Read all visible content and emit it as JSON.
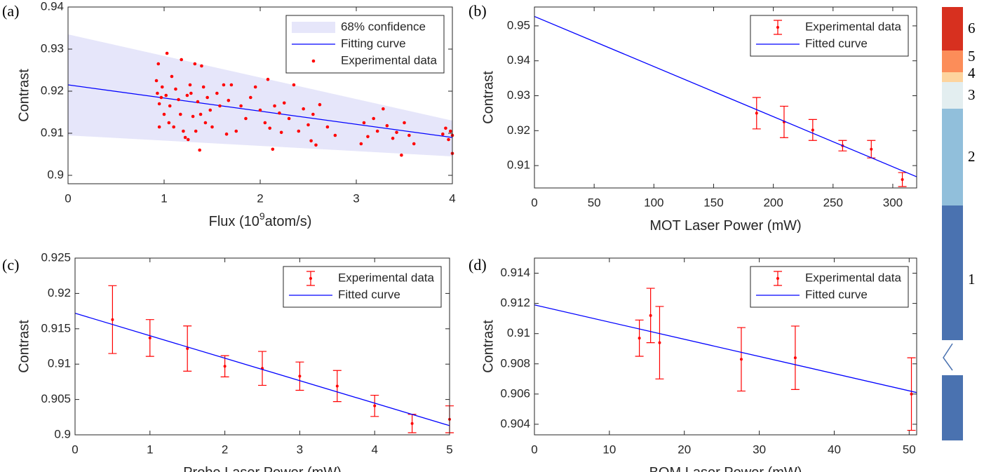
{
  "chart_data": [
    {
      "type": "scatter",
      "panel_label": "(a)",
      "ylabel": "Contrast",
      "xlabel": {
        "text": "Flux (10",
        "sup": "9",
        "after": "atom/s)"
      },
      "xlim": [
        0,
        4
      ],
      "ylim": [
        0.898,
        0.94
      ],
      "xticks": [
        0,
        1,
        2,
        3,
        4
      ],
      "yticks": [
        0.9,
        0.91,
        0.92,
        0.93,
        0.94
      ],
      "legend": "upper right",
      "series": [
        {
          "name": "68% confidence",
          "type": "band",
          "color": "#e6e6fa",
          "x": [
            0,
            4
          ],
          "upper": [
            0.9335,
            0.913
          ],
          "lower": [
            0.9095,
            0.9045
          ]
        },
        {
          "name": "Fitting curve",
          "type": "line",
          "color": "#0000ff",
          "x": [
            0,
            4
          ],
          "values": [
            0.9215,
            0.909
          ]
        },
        {
          "name": "Experimental data",
          "type": "points",
          "color": "#ff0000",
          "x": [
            0.92,
            0.93,
            0.94,
            0.95,
            0.95,
            0.97,
            0.98,
            1.0,
            1.02,
            1.03,
            1.05,
            1.06,
            1.08,
            1.1,
            1.12,
            1.15,
            1.17,
            1.18,
            1.2,
            1.22,
            1.24,
            1.25,
            1.27,
            1.28,
            1.3,
            1.32,
            1.33,
            1.35,
            1.37,
            1.38,
            1.39,
            1.41,
            1.43,
            1.45,
            1.48,
            1.5,
            1.55,
            1.58,
            1.62,
            1.65,
            1.67,
            1.7,
            1.75,
            1.8,
            1.85,
            1.9,
            1.95,
            2.0,
            2.05,
            2.08,
            2.1,
            2.13,
            2.15,
            2.2,
            2.22,
            2.25,
            2.3,
            2.35,
            2.4,
            2.45,
            2.5,
            2.53,
            2.55,
            2.58,
            2.62,
            2.7,
            2.78,
            3.05,
            3.08,
            3.12,
            3.18,
            3.22,
            3.28,
            3.32,
            3.38,
            3.42,
            3.47,
            3.5,
            3.55,
            3.6,
            3.9,
            3.93,
            3.96,
            3.98,
            4.0,
            4.0
          ],
          "values": [
            0.9225,
            0.9195,
            0.9265,
            0.917,
            0.9115,
            0.9185,
            0.921,
            0.9145,
            0.919,
            0.929,
            0.9125,
            0.9165,
            0.9235,
            0.9115,
            0.9205,
            0.918,
            0.9145,
            0.9275,
            0.9105,
            0.909,
            0.919,
            0.9085,
            0.9215,
            0.9195,
            0.914,
            0.9265,
            0.9105,
            0.9175,
            0.906,
            0.9145,
            0.926,
            0.921,
            0.9125,
            0.9185,
            0.9155,
            0.9115,
            0.9195,
            0.9165,
            0.9215,
            0.9098,
            0.9178,
            0.9215,
            0.9105,
            0.9165,
            0.9135,
            0.9185,
            0.921,
            0.9155,
            0.9125,
            0.9228,
            0.9112,
            0.9062,
            0.9165,
            0.9148,
            0.9102,
            0.9172,
            0.9135,
            0.9215,
            0.9105,
            0.9158,
            0.912,
            0.9082,
            0.9145,
            0.9072,
            0.9168,
            0.9115,
            0.9095,
            0.9075,
            0.9125,
            0.9092,
            0.9135,
            0.9105,
            0.9158,
            0.9118,
            0.9088,
            0.9102,
            0.9048,
            0.9125,
            0.9095,
            0.9075,
            0.9098,
            0.9112,
            0.9085,
            0.9105,
            0.9052,
            0.9095
          ]
        }
      ]
    },
    {
      "type": "errorbar",
      "panel_label": "(b)",
      "ylabel": "Contrast",
      "xlabel": {
        "text": "MOT Laser Power  (mW)"
      },
      "xlim": [
        0,
        320
      ],
      "ylim": [
        0.9036,
        0.9554
      ],
      "xticks": [
        0,
        50,
        100,
        150,
        200,
        250,
        300
      ],
      "yticks": [
        0.91,
        0.92,
        0.93,
        0.94,
        0.95
      ],
      "legend": "upper right",
      "series": [
        {
          "name": "Experimental data",
          "type": "errorbar",
          "color": "#ff0000",
          "x": [
            186,
            209,
            233,
            258,
            282,
            308
          ],
          "values": [
            0.925,
            0.9225,
            0.9202,
            0.9157,
            0.9147,
            0.906
          ],
          "errors": [
            0.0045,
            0.0045,
            0.003,
            0.0015,
            0.0025,
            0.002
          ]
        },
        {
          "name": "Fitted curve",
          "type": "line",
          "color": "#0000ff",
          "x": [
            0,
            320
          ],
          "values": [
            0.9527,
            0.9068
          ]
        }
      ]
    },
    {
      "type": "errorbar",
      "panel_label": "(c)",
      "ylabel": "Contrast",
      "xlabel": {
        "text": "Probe Laser Power (mW)"
      },
      "xlim": [
        0,
        5
      ],
      "ylim": [
        0.9,
        0.925
      ],
      "xticks": [
        0,
        1,
        2,
        3,
        4,
        5
      ],
      "yticks": [
        0.9,
        0.905,
        0.91,
        0.915,
        0.92,
        0.925
      ],
      "legend": "upper right",
      "series": [
        {
          "name": "Experimental data",
          "type": "errorbar",
          "color": "#ff0000",
          "x": [
            0.5,
            1,
            1.5,
            2,
            2.5,
            3,
            3.5,
            4,
            4.5,
            5
          ],
          "values": [
            0.9163,
            0.9137,
            0.9122,
            0.9097,
            0.9094,
            0.9083,
            0.9069,
            0.9041,
            0.9016,
            0.9022
          ],
          "errors": [
            0.0048,
            0.0026,
            0.0032,
            0.0015,
            0.0024,
            0.002,
            0.0022,
            0.0015,
            0.0013,
            0.0019
          ]
        },
        {
          "name": "Fitted curve",
          "type": "line",
          "color": "#0000ff",
          "x": [
            0,
            5
          ],
          "values": [
            0.9172,
            0.9013
          ]
        }
      ]
    },
    {
      "type": "errorbar",
      "panel_label": "(d)",
      "ylabel": "Contrast",
      "xlabel": {
        "text": "BOM Laser Power (mW)"
      },
      "xlim": [
        0,
        51
      ],
      "ylim": [
        0.9033,
        0.915
      ],
      "xticks": [
        0,
        10,
        20,
        30,
        40,
        50
      ],
      "yticks": [
        0.904,
        0.906,
        0.908,
        0.91,
        0.912,
        0.914
      ],
      "legend": "upper right",
      "series": [
        {
          "name": "Experimental data",
          "type": "errorbar",
          "color": "#ff0000",
          "x": [
            14,
            15.5,
            16.7,
            27.6,
            34.8,
            50.3
          ],
          "values": [
            0.9097,
            0.9112,
            0.9094,
            0.9083,
            0.9084,
            0.906
          ],
          "errors": [
            0.0012,
            0.0018,
            0.0024,
            0.0021,
            0.0021,
            0.0024
          ]
        },
        {
          "name": "Fitted curve",
          "type": "line",
          "color": "#0000ff",
          "x": [
            0,
            51
          ],
          "values": [
            0.9119,
            0.9061
          ]
        }
      ]
    }
  ],
  "colorbar": {
    "labels": [
      "6",
      "5",
      "4",
      "3",
      "2",
      "1"
    ],
    "colors": [
      "#d7301f",
      "#fc8d59",
      "#fdd49e",
      "#e3eef0",
      "#91bfdb",
      "#4a72b0"
    ]
  }
}
